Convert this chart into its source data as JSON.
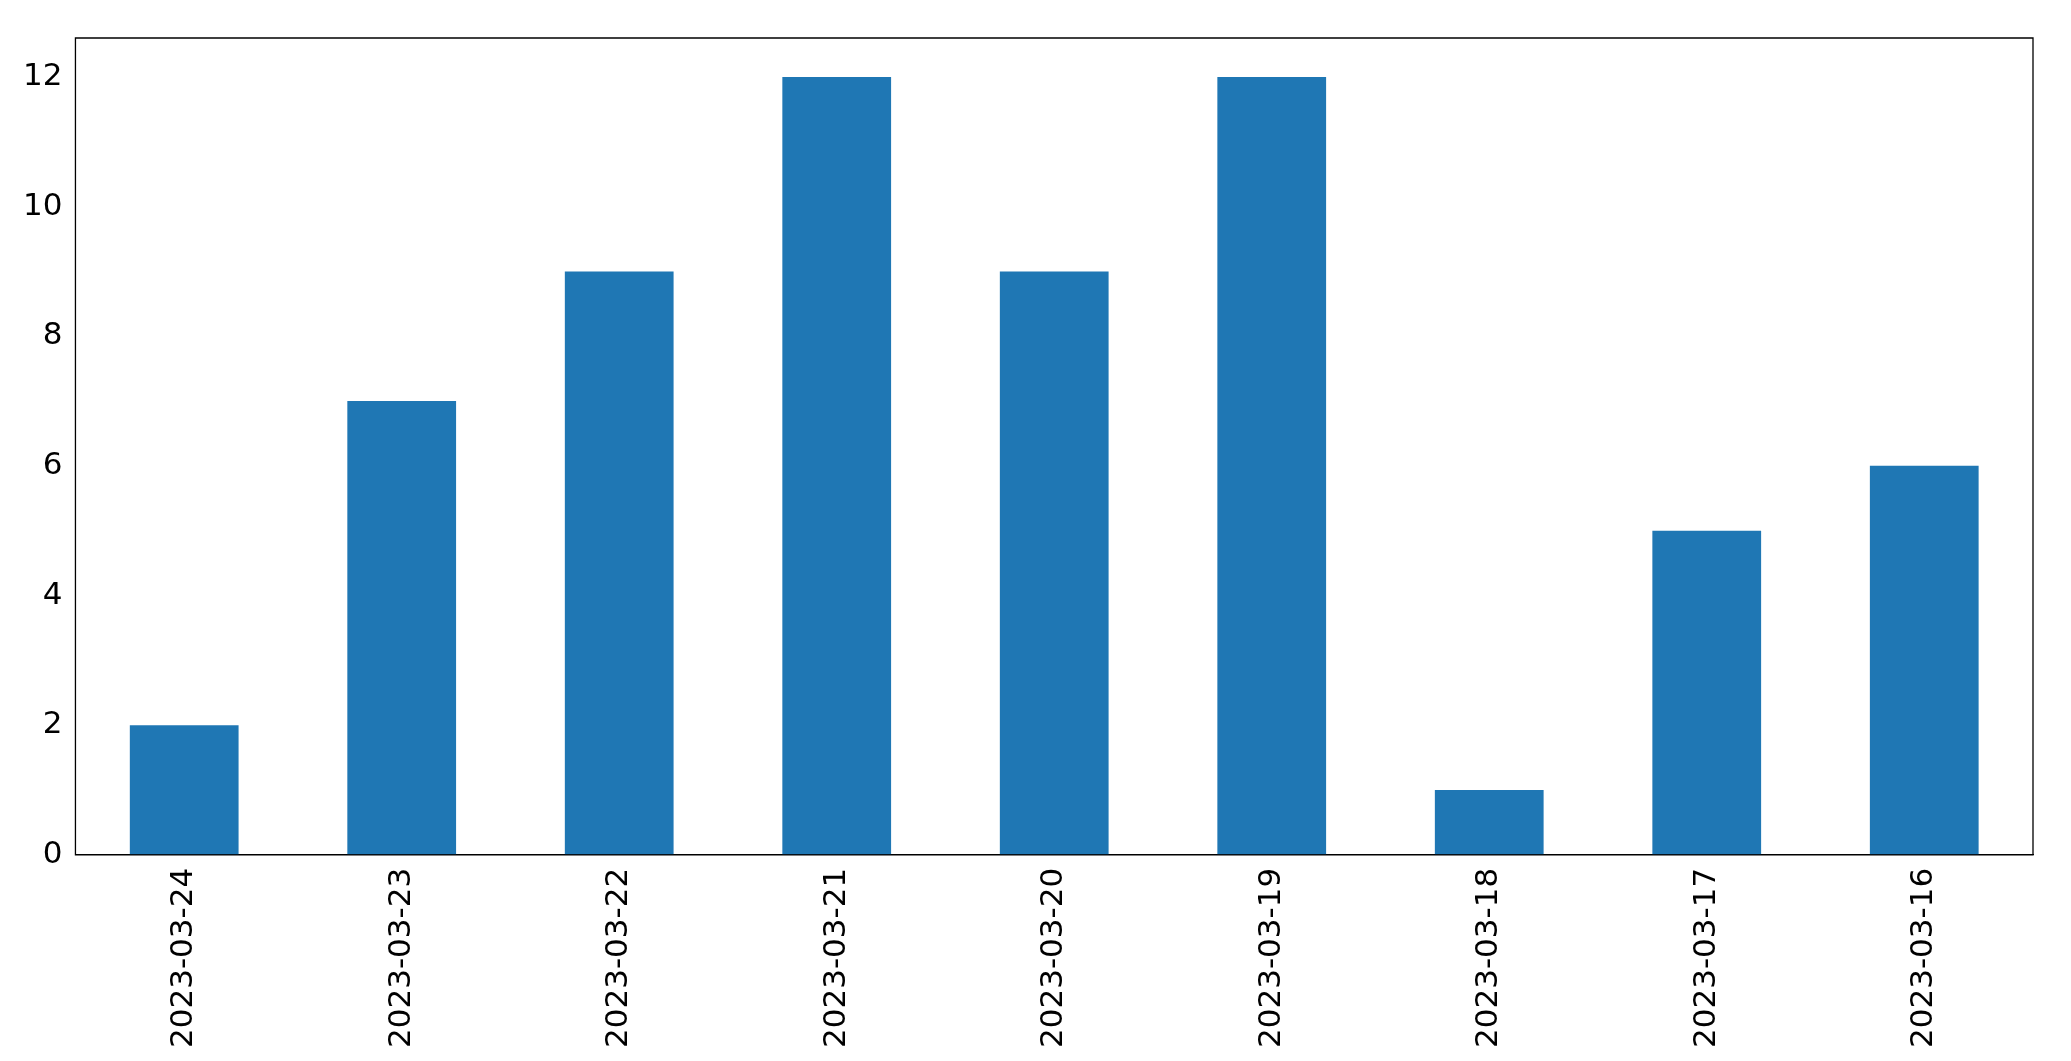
{
  "chart_data": {
    "type": "bar",
    "categories": [
      "2023-03-24",
      "2023-03-23",
      "2023-03-22",
      "2023-03-21",
      "2023-03-20",
      "2023-03-19",
      "2023-03-18",
      "2023-03-17",
      "2023-03-16"
    ],
    "values": [
      2,
      7,
      9,
      12,
      9,
      12,
      1,
      5,
      6
    ],
    "color": "#1f77b4",
    "ylim": [
      0,
      12.6
    ],
    "yticks": [
      0,
      2,
      4,
      6,
      8,
      10,
      12
    ],
    "grid": false,
    "legend": false
  }
}
